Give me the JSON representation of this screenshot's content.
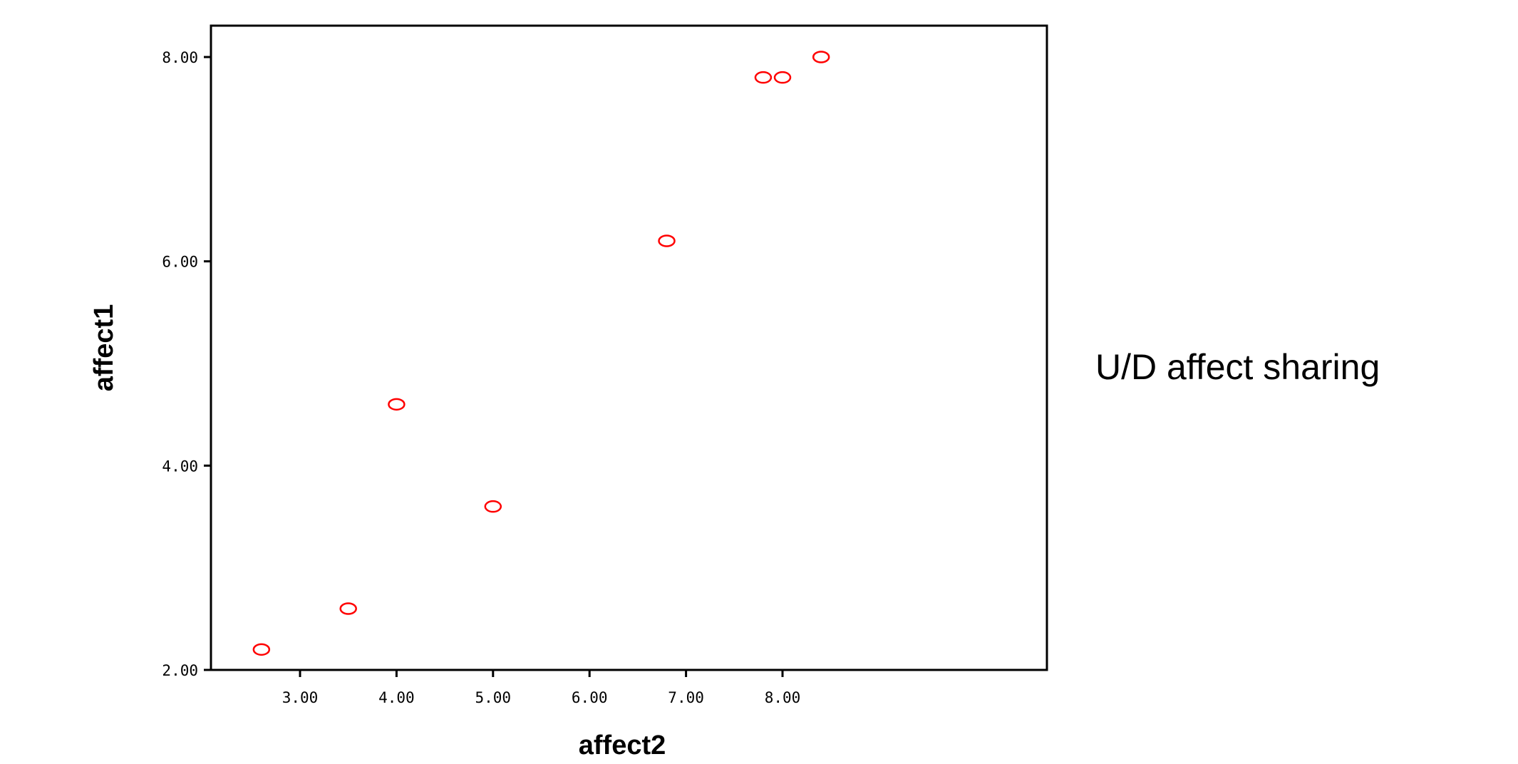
{
  "side_label": "U/D affect sharing",
  "chart_data": {
    "type": "scatter",
    "title": "",
    "xlabel": "affect2",
    "ylabel": "affect1",
    "xlim": [
      2.3,
      8.5
    ],
    "ylim": [
      2.0,
      8.2
    ],
    "x_ticks": [
      {
        "value": 3,
        "label": "3.00"
      },
      {
        "value": 4,
        "label": "4.00"
      },
      {
        "value": 5,
        "label": "5.00"
      },
      {
        "value": 6,
        "label": "6.00"
      },
      {
        "value": 7,
        "label": "7.00"
      },
      {
        "value": 8,
        "label": "8.00"
      }
    ],
    "y_ticks": [
      {
        "value": 2,
        "label": "2.00"
      },
      {
        "value": 4,
        "label": "4.00"
      },
      {
        "value": 6,
        "label": "6.00"
      },
      {
        "value": 8,
        "label": "8.00"
      }
    ],
    "points": [
      {
        "x": 2.6,
        "y": 2.2
      },
      {
        "x": 3.5,
        "y": 2.6
      },
      {
        "x": 4.0,
        "y": 4.6
      },
      {
        "x": 5.0,
        "y": 3.6
      },
      {
        "x": 6.8,
        "y": 6.2
      },
      {
        "x": 7.8,
        "y": 7.8
      },
      {
        "x": 8.0,
        "y": 7.8
      },
      {
        "x": 8.4,
        "y": 8.0
      }
    ],
    "marker_color": "#ff0000",
    "grid": false
  }
}
